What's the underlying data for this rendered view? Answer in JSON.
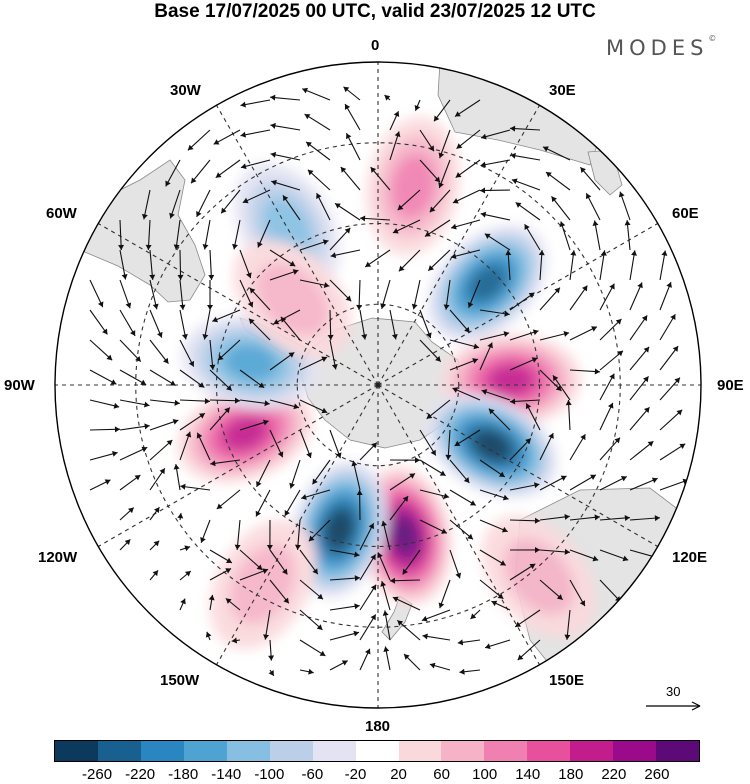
{
  "title": "Base 17/07/2025 00 UTC, valid 23/07/2025 12 UTC",
  "brand": "MODES",
  "brand_mark": "©",
  "longitude_labels": {
    "lon_0": "0",
    "lon_30e": "30E",
    "lon_60e": "60E",
    "lon_90e": "90E",
    "lon_120e": "120E",
    "lon_150e": "150E",
    "lon_180": "180",
    "lon_150w": "150W",
    "lon_120w": "120W",
    "lon_90w": "90W",
    "lon_60w": "60W",
    "lon_30w": "30W"
  },
  "reference_vector": {
    "value": "30"
  },
  "colorbar": {
    "colors": [
      "#0c3a5c",
      "#17608f",
      "#2a86c0",
      "#4fa3d3",
      "#86bfe2",
      "#bccfe8",
      "#e3e3f3",
      "#ffffff",
      "#fad9dc",
      "#f6b3c7",
      "#f080b1",
      "#e8509d",
      "#c31d8d",
      "#9b0a8a",
      "#5d0a78"
    ],
    "tick_labels": [
      "-260",
      "-220",
      "-180",
      "-140",
      "-100",
      "-60",
      "-20",
      "20",
      "60",
      "100",
      "140",
      "180",
      "220",
      "260"
    ]
  },
  "anomaly_centers": [
    {
      "lon": 47,
      "lat": -53,
      "value": -220
    },
    {
      "lon": 88,
      "lat": -57,
      "value": 160
    },
    {
      "lon": 118,
      "lat": -58,
      "value": -250
    },
    {
      "lon": 170,
      "lat": -52,
      "value": 260
    },
    {
      "lon": -165,
      "lat": -53,
      "value": -260
    },
    {
      "lon": -110,
      "lat": -55,
      "value": 170
    },
    {
      "lon": -80,
      "lat": -58,
      "value": -150
    },
    {
      "lon": -30,
      "lat": -45,
      "value": -80
    },
    {
      "lon": 10,
      "lat": -40,
      "value": 80
    },
    {
      "lon": -45,
      "lat": -60,
      "value": 60
    },
    {
      "lon": 140,
      "lat": -28,
      "value": 60
    },
    {
      "lon": -150,
      "lat": -33,
      "value": 50
    }
  ]
}
